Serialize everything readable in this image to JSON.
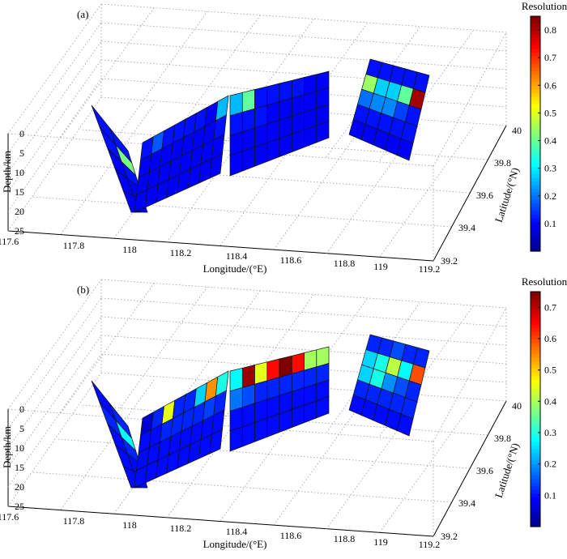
{
  "chart_data": [
    {
      "type": "3d-fault-surface",
      "panel_label": "(a)",
      "xlabel": "Longitude/(°E)",
      "ylabel": "Latitude/(°N)",
      "zlabel": "Depth/km",
      "x_ticks": [
        "117.6",
        "117.8",
        "118",
        "118.2",
        "118.4",
        "118.6",
        "118.8",
        "119",
        "119.2"
      ],
      "y_ticks": [
        "39.2",
        "39.4",
        "39.6",
        "39.8",
        "40"
      ],
      "z_ticks": [
        "0",
        "5",
        "10",
        "15",
        "20",
        "25"
      ],
      "colorbar": {
        "title": "Resolution",
        "ticks": [
          "0.1",
          "0.2",
          "0.3",
          "0.4",
          "0.5",
          "0.6",
          "0.7",
          "0.8"
        ],
        "min": 0,
        "max": 0.85
      },
      "segments": [
        {
          "name": "segment-1",
          "values": [
            [
              0.12,
              0.12
            ],
            [
              0.12,
              0.42
            ],
            [
              0.1,
              0.12
            ],
            [
              0.1,
              0.1
            ],
            [
              0.1,
              0.1
            ]
          ]
        },
        {
          "name": "segment-2",
          "values": [
            [
              0.12,
              0.18,
              0.12,
              0.12,
              0.12,
              0.12,
              0.1,
              0.26
            ],
            [
              0.1,
              0.1,
              0.1,
              0.1,
              0.1,
              0.1,
              0.1,
              0.12
            ],
            [
              0.1,
              0.1,
              0.1,
              0.1,
              0.1,
              0.1,
              0.1,
              0.1
            ],
            [
              0.1,
              0.1,
              0.1,
              0.1,
              0.1,
              0.1,
              0.1,
              0.1
            ]
          ]
        },
        {
          "name": "segment-3",
          "values": [
            [
              0.26,
              0.4,
              0.12,
              0.12,
              0.12,
              0.12,
              0.1,
              0.1
            ],
            [
              0.12,
              0.12,
              0.12,
              0.1,
              0.1,
              0.1,
              0.1,
              0.1
            ],
            [
              0.1,
              0.1,
              0.1,
              0.1,
              0.1,
              0.1,
              0.1,
              0.1
            ],
            [
              0.1,
              0.1,
              0.1,
              0.1,
              0.1,
              0.1,
              0.1,
              0.1
            ]
          ]
        },
        {
          "name": "segment-4",
          "values": [
            [
              0.12,
              0.12,
              0.12,
              0.12,
              0.12
            ],
            [
              0.45,
              0.28,
              0.28,
              0.4,
              0.82
            ],
            [
              0.2,
              0.22,
              0.22,
              0.16,
              0.12
            ],
            [
              0.12,
              0.12,
              0.12,
              0.12,
              0.12
            ],
            [
              0.1,
              0.1,
              0.1,
              0.1,
              0.1
            ]
          ]
        }
      ]
    },
    {
      "type": "3d-fault-surface",
      "panel_label": "(b)",
      "xlabel": "Longitude/(°E)",
      "ylabel": "Latitude/(°N)",
      "zlabel": "Depth/km",
      "x_ticks": [
        "117.6",
        "117.8",
        "118",
        "118.2",
        "118.4",
        "118.6",
        "118.8",
        "119",
        "119.2"
      ],
      "y_ticks": [
        "39.2",
        "39.4",
        "39.6",
        "39.8",
        "40"
      ],
      "z_ticks": [
        "0",
        "5",
        "10",
        "15",
        "20",
        "25"
      ],
      "colorbar": {
        "title": "Resolution",
        "ticks": [
          "0.1",
          "0.2",
          "0.3",
          "0.4",
          "0.5",
          "0.6",
          "0.7"
        ],
        "min": 0,
        "max": 0.75
      },
      "segments": [
        {
          "name": "segment-1",
          "values": [
            [
              0.1,
              0.12
            ],
            [
              0.12,
              0.28
            ],
            [
              0.1,
              0.12
            ],
            [
              0.1,
              0.1
            ],
            [
              0.1,
              0.1
            ]
          ]
        },
        {
          "name": "segment-2",
          "values": [
            [
              0.06,
              0.12,
              0.45,
              0.12,
              0.12,
              0.25,
              0.55,
              0.3
            ],
            [
              0.1,
              0.1,
              0.12,
              0.12,
              0.12,
              0.12,
              0.14,
              0.12
            ],
            [
              0.1,
              0.1,
              0.1,
              0.1,
              0.1,
              0.1,
              0.1,
              0.1
            ],
            [
              0.1,
              0.1,
              0.1,
              0.1,
              0.1,
              0.1,
              0.1,
              0.1
            ]
          ]
        },
        {
          "name": "segment-3",
          "values": [
            [
              0.28,
              0.73,
              0.45,
              0.65,
              0.75,
              0.65,
              0.4,
              0.4
            ],
            [
              0.18,
              0.15,
              0.12,
              0.12,
              0.12,
              0.12,
              0.12,
              0.12
            ],
            [
              0.1,
              0.1,
              0.1,
              0.1,
              0.1,
              0.1,
              0.1,
              0.1
            ],
            [
              0.1,
              0.1,
              0.1,
              0.1,
              0.1,
              0.1,
              0.1,
              0.1
            ]
          ]
        },
        {
          "name": "segment-4",
          "values": [
            [
              0.12,
              0.12,
              0.15,
              0.12,
              0.12
            ],
            [
              0.25,
              0.3,
              0.42,
              0.28,
              0.6
            ],
            [
              0.25,
              0.3,
              0.2,
              0.15,
              0.12
            ],
            [
              0.12,
              0.12,
              0.12,
              0.12,
              0.12
            ],
            [
              0.1,
              0.1,
              0.1,
              0.1,
              0.1
            ]
          ]
        }
      ]
    }
  ]
}
